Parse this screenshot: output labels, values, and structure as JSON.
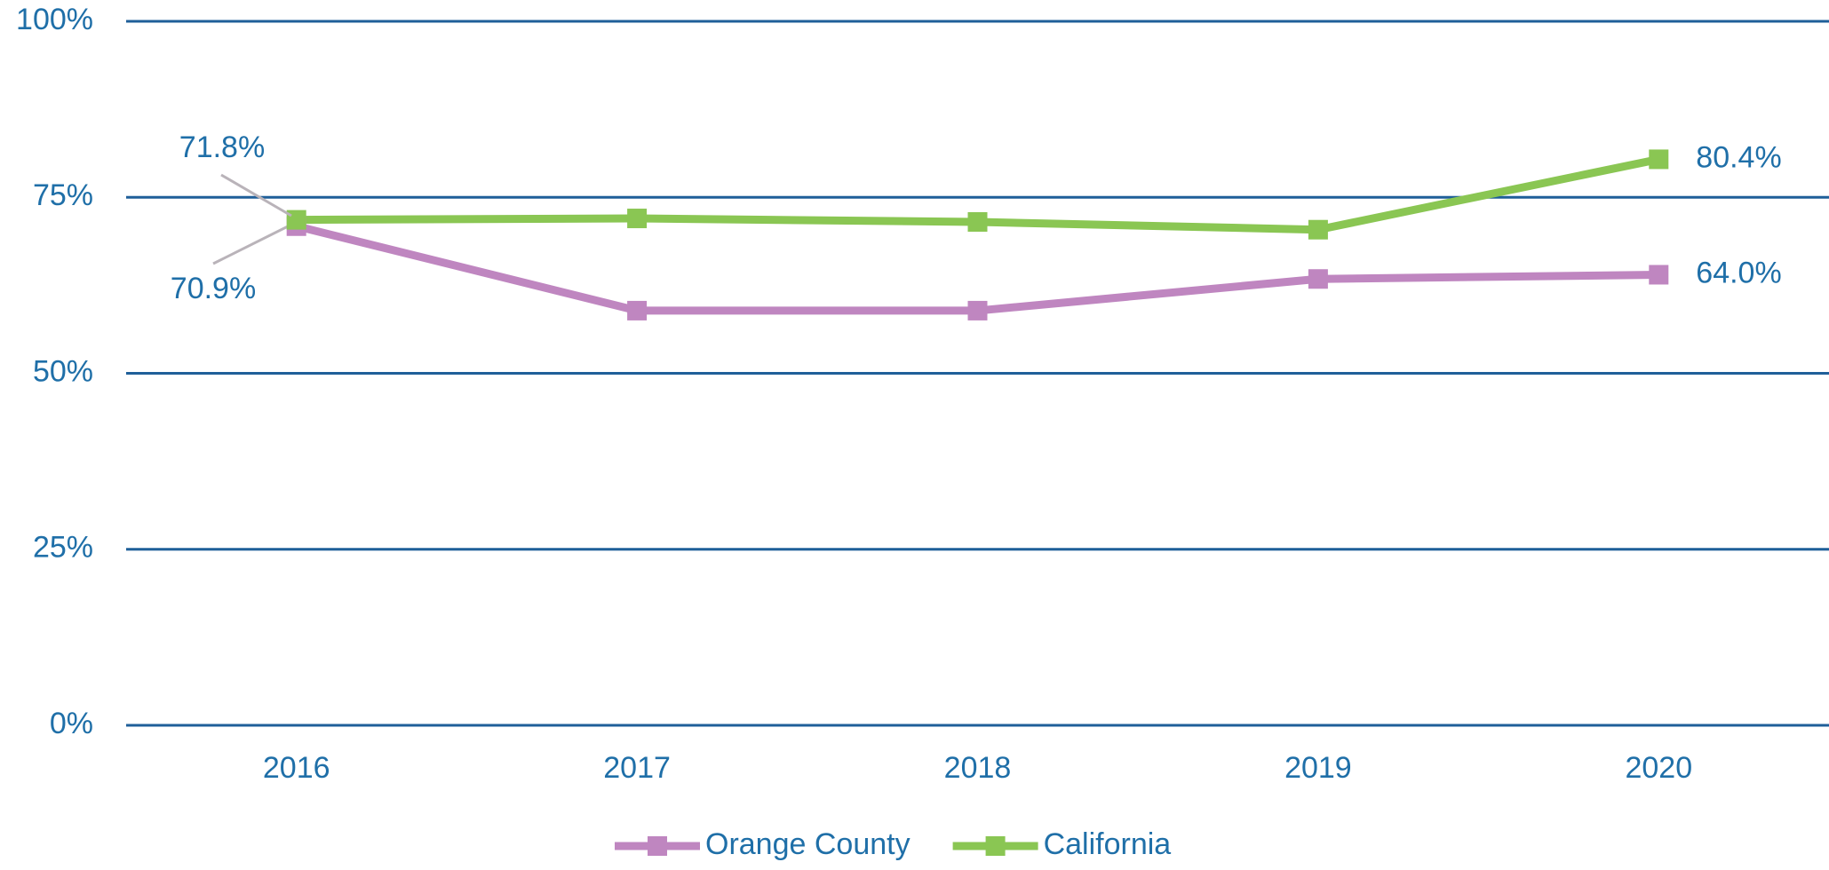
{
  "chart_data": {
    "type": "line",
    "categories": [
      "2016",
      "2017",
      "2018",
      "2019",
      "2020"
    ],
    "series": [
      {
        "name": "Orange County",
        "color": "#bf86c0",
        "values": [
          70.9,
          58.9,
          58.9,
          63.4,
          64.0
        ],
        "value_labels": [
          "70.9%",
          null,
          null,
          null,
          "64.0%"
        ]
      },
      {
        "name": "California",
        "color": "#8ac653",
        "values": [
          71.8,
          72.0,
          71.5,
          70.4,
          80.4
        ],
        "value_labels": [
          "71.8%",
          null,
          null,
          null,
          "80.4%"
        ]
      }
    ],
    "ylim": [
      0,
      100
    ],
    "yticks": [
      {
        "value": 0,
        "label": "0%"
      },
      {
        "value": 25,
        "label": "25%"
      },
      {
        "value": 50,
        "label": "50%"
      },
      {
        "value": 75,
        "label": "75%"
      },
      {
        "value": 100,
        "label": "100%"
      }
    ],
    "grid": true,
    "legend": "bottom"
  }
}
